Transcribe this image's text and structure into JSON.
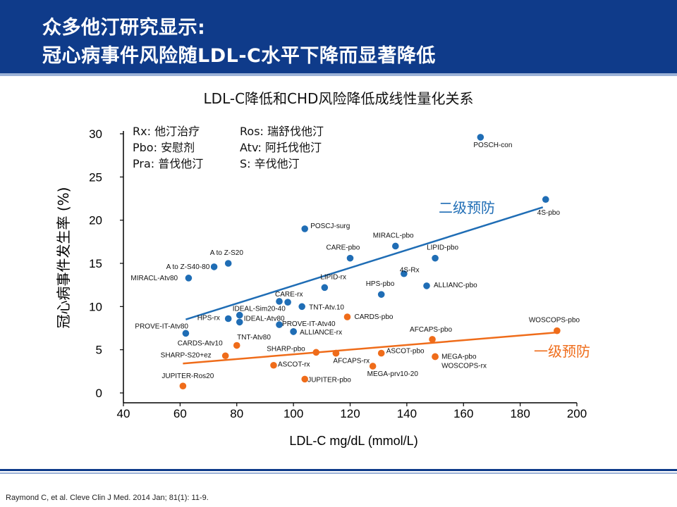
{
  "header": {
    "title_line1": "众多他汀研究显示:",
    "title_line2": "冠心病事件风险随LDL-C水平下降而显著降低"
  },
  "abbrev_legend": [
    [
      "Rx: 他汀治疗",
      "Ros: 瑞舒伐他汀"
    ],
    [
      "Pbo: 安慰剂",
      "Atv: 阿托伐他汀"
    ],
    [
      "Pra: 普伐他汀",
      "S: 辛伐他汀"
    ]
  ],
  "citation": "Raymond C,  et al. Cleve Clin J Med. 2014 Jan; 81(1): 11-9.",
  "colors": {
    "secondary": "#1f6db5",
    "primary": "#ef6c1a",
    "header": "#0f3b8a"
  },
  "chart_data": {
    "type": "scatter",
    "title": "LDL-C降低和CHD风险降低成线性量化关系",
    "xlabel": "LDL-C mg/dL (mmol/L)",
    "ylabel": "冠心病事件发生率 (%)",
    "xlim": [
      40,
      200
    ],
    "ylim": [
      0,
      30
    ],
    "xticks": [
      40,
      60,
      80,
      100,
      120,
      140,
      160,
      180,
      200
    ],
    "yticks": [
      0,
      5,
      10,
      15,
      20,
      25,
      30
    ],
    "grid": false,
    "series": [
      {
        "name": "二级预防",
        "color": "#1f6db5",
        "trendline": [
          [
            62,
            8.5
          ],
          [
            188,
            21.5
          ]
        ],
        "points": [
          {
            "label": "POSCH-con",
            "x": 166,
            "y": 29.6
          },
          {
            "label": "4S-pbo",
            "x": 189,
            "y": 22.4
          },
          {
            "label": "POSCJ-surg",
            "x": 104,
            "y": 19
          },
          {
            "label": "MIRACL-pbo",
            "x": 136,
            "y": 17
          },
          {
            "label": "CARE-pbo",
            "x": 120,
            "y": 15.6
          },
          {
            "label": "LIPID-pbo",
            "x": 150,
            "y": 15.6
          },
          {
            "label": "A to Z-S20",
            "x": 77,
            "y": 15
          },
          {
            "label": "A to Z-S40-80",
            "x": 72,
            "y": 14.6
          },
          {
            "label": "MIRACL-Atv80",
            "x": 63,
            "y": 13.3
          },
          {
            "label": "4S-Rx",
            "x": 139,
            "y": 13.8
          },
          {
            "label": "LIPID-rx",
            "x": 111,
            "y": 12.2
          },
          {
            "label": "HPS-pbo",
            "x": 131,
            "y": 11.4
          },
          {
            "label": "ALLIANC-pbo",
            "x": 147,
            "y": 12.4
          },
          {
            "label": "CARE-rx",
            "x": 95,
            "y": 10.6
          },
          {
            "label": "",
            "x": 98,
            "y": 10.5
          },
          {
            "label": "TNT-Atv.10",
            "x": 103,
            "y": 10
          },
          {
            "label": "IDEAL-Sim20-40",
            "x": 81,
            "y": 9
          },
          {
            "label": "HPS-rx",
            "x": 77,
            "y": 8.6
          },
          {
            "label": "IDEAL-Atv80",
            "x": 81,
            "y": 8.2
          },
          {
            "label": "PROVE-IT-Atv40",
            "x": 95,
            "y": 7.9
          },
          {
            "label": "TNT-Atv80",
            "x": 100,
            "y": 7.1
          },
          {
            "label": "ALLIANCE-rx",
            "x": 100,
            "y": 7.1
          },
          {
            "label": "PROVE-IT-Atv80",
            "x": 62,
            "y": 6.9
          }
        ]
      },
      {
        "name": "一级预防",
        "color": "#ef6c1a",
        "trendline": [
          [
            61,
            3.4
          ],
          [
            193,
            7
          ]
        ],
        "points": [
          {
            "label": "WOSCOPS-pbo",
            "x": 193,
            "y": 7.2
          },
          {
            "label": "AFCAPS-pbo",
            "x": 149,
            "y": 6.2
          },
          {
            "label": "CARDS-pbo",
            "x": 119,
            "y": 8.8
          },
          {
            "label": "CARDS-Atv10",
            "x": 80,
            "y": 5.5
          },
          {
            "label": "SHARP-pbo",
            "x": 108,
            "y": 4.7
          },
          {
            "label": "",
            "x": 115,
            "y": 4.6
          },
          {
            "label": "ASCOT-pbo",
            "x": 131,
            "y": 4.6
          },
          {
            "label": "AFCAPS-rx",
            "x": 115,
            "y": 4.6
          },
          {
            "label": "MEGA-pbo",
            "x": 150,
            "y": 4.2
          },
          {
            "label": "WOSCOPS-rx",
            "x": 150,
            "y": 4.2
          },
          {
            "label": "SHARP-S20+ez",
            "x": 76,
            "y": 4.3
          },
          {
            "label": "ASCOT-rx",
            "x": 93,
            "y": 3.2
          },
          {
            "label": "MEGA-prv10-20",
            "x": 128,
            "y": 3.1
          },
          {
            "label": "JUPITER-pbo",
            "x": 104,
            "y": 1.6
          },
          {
            "label": "JUPITER-Ros20",
            "x": 61,
            "y": 0.8
          }
        ]
      }
    ]
  }
}
